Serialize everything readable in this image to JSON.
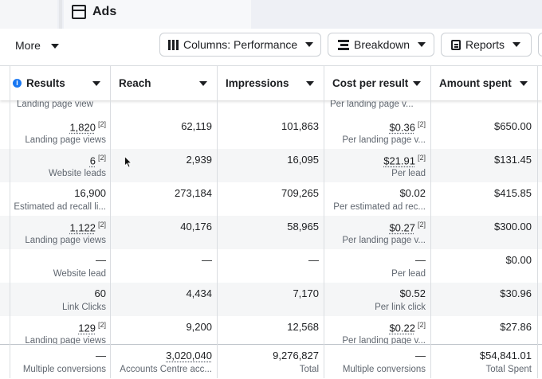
{
  "tab": {
    "title": "Ads"
  },
  "toolbar": {
    "more_label": "More",
    "columns_label": "Columns: Performance",
    "breakdown_label": "Breakdown",
    "reports_label": "Reports"
  },
  "headers": {
    "results": "Results",
    "reach": "Reach",
    "impressions": "Impressions",
    "cost": "Cost per result",
    "spent": "Amount spent"
  },
  "top_partial": {
    "results_sub": "Landing page view",
    "cost_sub": "Per landing page v..."
  },
  "rows": [
    {
      "results": "1,820",
      "results_sup": "[2]",
      "results_sub": "Landing page views",
      "reach": "62,119",
      "impressions": "101,863",
      "cost": "$0.36",
      "cost_sup": "[2]",
      "cost_sub": "Per landing page v...",
      "spent": "$650.00"
    },
    {
      "results": "6",
      "results_sup": "[2]",
      "results_sub": "Website leads",
      "reach": "2,939",
      "impressions": "16,095",
      "cost": "$21.91",
      "cost_sup": "[2]",
      "cost_sub": "Per lead",
      "spent": "$131.45"
    },
    {
      "results": "16,900",
      "results_sup": "",
      "results_sub": "Estimated ad recall li...",
      "reach": "273,184",
      "impressions": "709,265",
      "cost": "$0.02",
      "cost_sup": "",
      "cost_sub": "Per estimated ad rec...",
      "spent": "$415.85"
    },
    {
      "results": "1,122",
      "results_sup": "[2]",
      "results_sub": "Landing page views",
      "reach": "40,176",
      "impressions": "58,965",
      "cost": "$0.27",
      "cost_sup": "[2]",
      "cost_sub": "Per landing page v...",
      "spent": "$300.00"
    },
    {
      "results": "—",
      "results_sup": "",
      "results_sub": "Website lead",
      "reach": "—",
      "impressions": "—",
      "cost": "—",
      "cost_sup": "",
      "cost_sub": "Per lead",
      "spent": "$0.00"
    },
    {
      "results": "60",
      "results_sup": "",
      "results_sub": "Link Clicks",
      "reach": "4,434",
      "impressions": "7,170",
      "cost": "$0.52",
      "cost_sup": "",
      "cost_sub": "Per link click",
      "spent": "$30.96"
    },
    {
      "results": "129",
      "results_sup": "[2]",
      "results_sub": "Landing page views",
      "reach": "9,200",
      "impressions": "12,568",
      "cost": "$0.22",
      "cost_sup": "[2]",
      "cost_sub": "Per landing page v...",
      "spent": "$27.86"
    }
  ],
  "totals": {
    "results": "—",
    "results_sub": "Multiple conversions",
    "reach": "3,020,040",
    "reach_sub": "Accounts Centre acc...",
    "impressions": "9,276,827",
    "impressions_sub": "Total",
    "cost": "—",
    "cost_sub": "Multiple conversions",
    "spent": "$54,841.01",
    "spent_sub": "Total Spent"
  },
  "colors": {
    "accent": "#1877f2",
    "alt_row": "#f5f6f7",
    "grid": "#dadde1"
  },
  "icons": [
    "ads-window-icon",
    "columns-icon",
    "breakdown-icon",
    "reports-icon",
    "info-icon",
    "mouse-cursor-icon"
  ]
}
